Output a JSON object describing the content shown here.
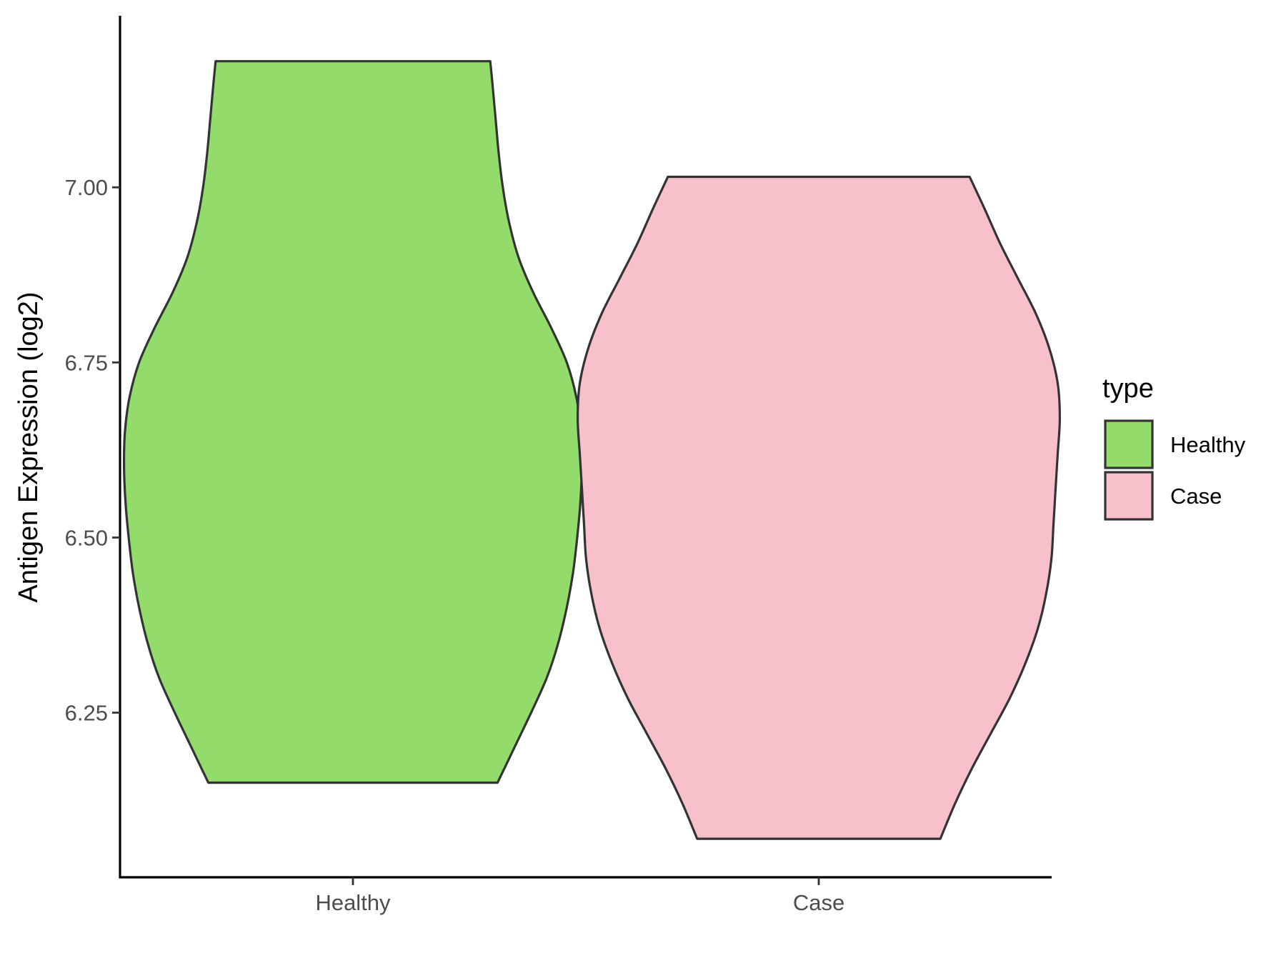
{
  "chart_data": {
    "type": "violin",
    "ylabel": "Antigen Expression (log2)",
    "xlabel": "",
    "categories": [
      "Healthy",
      "Case"
    ],
    "ylim": [
      6.015,
      7.245
    ],
    "yticks": [
      6.25,
      6.5,
      6.75,
      7.0
    ],
    "ytick_labels": [
      "6.25",
      "6.50",
      "6.75",
      "7.00"
    ],
    "grid": false,
    "legend": {
      "title": "type",
      "position": "right",
      "entries": [
        "Healthy",
        "Case"
      ]
    },
    "colors": {
      "Healthy": "#93dc6b",
      "Case": "#f8c0cb",
      "outline": "#333333"
    },
    "series": [
      {
        "name": "Healthy",
        "min": 6.15,
        "max": 7.18,
        "density_profile": [
          [
            6.15,
            0.31
          ],
          [
            6.2,
            0.23
          ],
          [
            6.25,
            0.15
          ],
          [
            6.3,
            0.075
          ],
          [
            6.35,
            0.02
          ],
          [
            6.4,
            -0.02
          ],
          [
            6.45,
            -0.05
          ],
          [
            6.5,
            -0.07
          ],
          [
            6.55,
            -0.085
          ],
          [
            6.6,
            -0.092
          ],
          [
            6.65,
            -0.088
          ],
          [
            6.7,
            -0.066
          ],
          [
            6.75,
            -0.02
          ],
          [
            6.8,
            0.055
          ],
          [
            6.85,
            0.14
          ],
          [
            6.9,
            0.21
          ],
          [
            6.95,
            0.255
          ],
          [
            7.0,
            0.285
          ],
          [
            7.05,
            0.305
          ],
          [
            7.1,
            0.32
          ],
          [
            7.15,
            0.335
          ],
          [
            7.18,
            0.345
          ]
        ]
      },
      {
        "name": "Case",
        "min": 6.07,
        "max": 7.015,
        "density_profile": [
          [
            6.07,
            0.42
          ],
          [
            6.12,
            0.35
          ],
          [
            6.17,
            0.27
          ],
          [
            6.22,
            0.18
          ],
          [
            6.27,
            0.09
          ],
          [
            6.32,
            0.015
          ],
          [
            6.37,
            -0.045
          ],
          [
            6.42,
            -0.085
          ],
          [
            6.47,
            -0.11
          ],
          [
            6.52,
            -0.12
          ],
          [
            6.57,
            -0.13
          ],
          [
            6.62,
            -0.14
          ],
          [
            6.67,
            -0.15
          ],
          [
            6.72,
            -0.14
          ],
          [
            6.77,
            -0.1
          ],
          [
            6.82,
            -0.035
          ],
          [
            6.87,
            0.05
          ],
          [
            6.92,
            0.135
          ],
          [
            6.97,
            0.21
          ],
          [
            7.015,
            0.28
          ]
        ]
      }
    ]
  }
}
